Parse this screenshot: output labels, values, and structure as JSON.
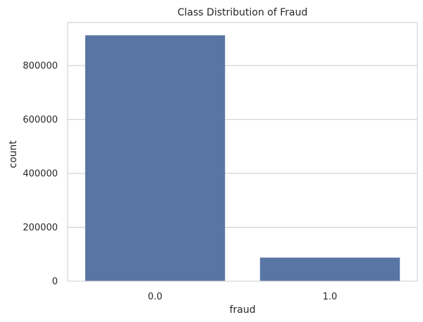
{
  "chart_data": {
    "type": "bar",
    "title": "Class Distribution of Fraud",
    "xlabel": "fraud",
    "ylabel": "count",
    "categories": [
      "0.0",
      "1.0"
    ],
    "values": [
      912597,
      87403
    ],
    "ylim": [
      0,
      960000
    ],
    "yticks": [
      0,
      200000,
      400000,
      600000,
      800000
    ],
    "ytick_labels": [
      "0",
      "200000",
      "400000",
      "600000",
      "800000"
    ],
    "grid": "horizontal",
    "bar_color": "#5975a4",
    "grid_color": "#cccccc",
    "spine_color": "#cccccc"
  }
}
